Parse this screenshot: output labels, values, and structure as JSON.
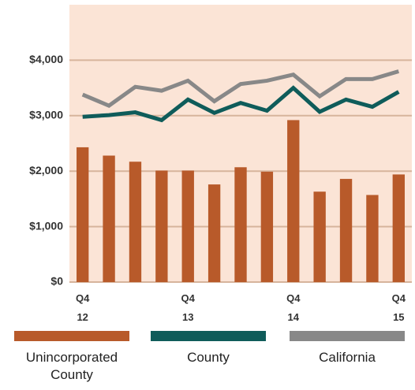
{
  "chart_data": {
    "type": "bar_line",
    "categories": [
      "Q4 12",
      null,
      null,
      null,
      "Q4 13",
      null,
      null,
      null,
      "Q4 14",
      null,
      null,
      null,
      "Q4 15"
    ],
    "series": [
      {
        "name": "Unincorporated County",
        "color": "#b85a2a",
        "type": "bar",
        "values": [
          2430,
          2280,
          2170,
          2010,
          2010,
          1760,
          2070,
          1990,
          2920,
          1630,
          1860,
          1570,
          1940
        ]
      },
      {
        "name": "County",
        "color": "#0f5c5a",
        "type": "line",
        "values": [
          2980,
          3010,
          3060,
          2920,
          3290,
          3050,
          3230,
          3090,
          3500,
          3070,
          3290,
          3160,
          3430
        ]
      },
      {
        "name": "California",
        "color": "#888888",
        "type": "line",
        "values": [
          3380,
          3180,
          3520,
          3450,
          3630,
          3260,
          3570,
          3630,
          3740,
          3350,
          3660,
          3660,
          3800
        ]
      }
    ],
    "ylim": [
      0,
      5000
    ],
    "yticks": [
      {
        "value": 0,
        "label": "$0"
      },
      {
        "value": 1000,
        "label": "$1,000"
      },
      {
        "value": 2000,
        "label": "$2,000"
      },
      {
        "value": 3000,
        "label": "$3,000"
      },
      {
        "value": 4000,
        "label": "$4,000"
      }
    ],
    "grid": true
  }
}
